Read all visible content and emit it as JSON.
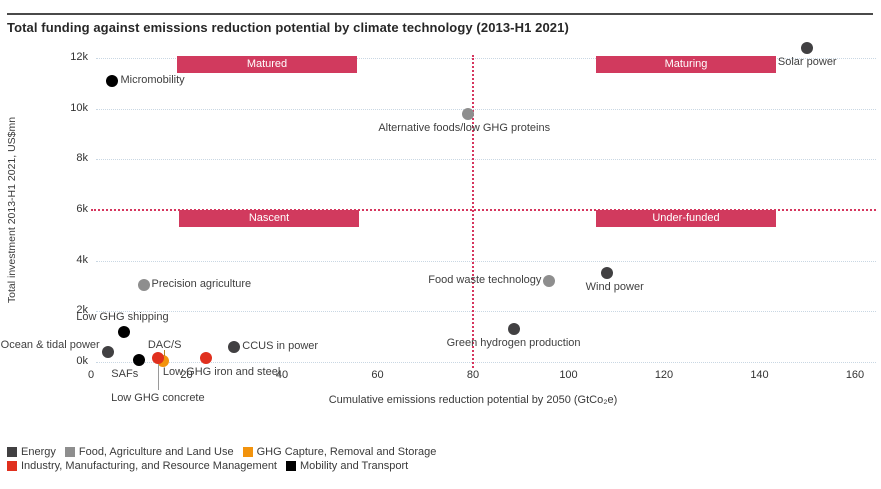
{
  "chart_data": {
    "type": "scatter",
    "title": "Total funding against emissions reduction potential by climate technology (2013-H1 2021)",
    "xlabel": "Cumulative emissions reduction potential by 2050 (GtCo₂e)",
    "ylabel": "Total investment 2013-H1 2021, US$mn",
    "xlim": [
      0,
      160
    ],
    "xticks": [
      0,
      20,
      40,
      60,
      80,
      100,
      120,
      140,
      160
    ],
    "ylim": [
      0,
      12400
    ],
    "yticks": [
      {
        "value": 0,
        "label": "0k"
      },
      {
        "value": 2000,
        "label": "2k"
      },
      {
        "value": 4000,
        "label": "4k"
      },
      {
        "value": 6000,
        "label": "6k"
      },
      {
        "value": 8000,
        "label": "8k"
      },
      {
        "value": 10000,
        "label": "10k"
      },
      {
        "value": 12000,
        "label": "12k"
      }
    ],
    "grid": "horizontal-dotted",
    "dividers": {
      "x_value": 80,
      "y_value": 6000
    },
    "quadrants": {
      "top_left": "Matured",
      "top_right": "Maturing",
      "bottom_left": "Nascent",
      "bottom_right": "Under-funded"
    },
    "colors": {
      "quadrant_bar": "#d13a5e",
      "divider_line": "#d6365e",
      "gridline": "#c9d7e3"
    },
    "legend": {
      "position": "bottom-left",
      "categories": [
        {
          "name": "Energy",
          "color": "#414042"
        },
        {
          "name": "Food, Agriculture and Land Use",
          "color": "#8e8e8e"
        },
        {
          "name": "GHG Capture, Removal and Storage",
          "color": "#f2930d"
        },
        {
          "name": "Industry, Manufacturing, and Resource Management",
          "color": "#e0301e"
        },
        {
          "name": "Mobility and Transport",
          "color": "#000000"
        }
      ],
      "rows": [
        [
          0,
          1,
          2
        ],
        [
          3,
          4
        ]
      ]
    },
    "points": [
      {
        "label": "Micromobility",
        "x": 4.5,
        "y": 11100,
        "category": "Mobility and Transport",
        "label_pos": "right"
      },
      {
        "label": "Solar power",
        "x": 150,
        "y": 12400,
        "category": "Energy",
        "label_pos": "below"
      },
      {
        "label": "Alternative foods/low GHG proteins",
        "x": 79,
        "y": 9800,
        "category": "Food, Agriculture and Land Use",
        "label_pos": "below",
        "dx": -4
      },
      {
        "label": "Precision agriculture",
        "x": 11,
        "y": 3050,
        "category": "Food, Agriculture and Land Use",
        "label_pos": "right"
      },
      {
        "label": "Food waste technology",
        "x": 96,
        "y": 3200,
        "category": "Food, Agriculture and Land Use",
        "label_pos": "left"
      },
      {
        "label": "Wind power",
        "x": 108,
        "y": 3500,
        "category": "Energy",
        "label_pos": "below",
        "dx": 8
      },
      {
        "label": "Green hydrogen production",
        "x": 88.5,
        "y": 1300,
        "category": "Energy",
        "label_pos": "below"
      },
      {
        "label": "Low GHG shipping",
        "x": 7,
        "y": 1200,
        "category": "Mobility and Transport",
        "label_pos": "above",
        "dx": -2
      },
      {
        "label": "Ocean & tidal power",
        "x": 3.5,
        "y": 400,
        "category": "Energy",
        "label_pos": "left",
        "dy": -6
      },
      {
        "label": "SAFs",
        "x": 10,
        "y": 60,
        "category": "Mobility and Transport",
        "label_pos": "below",
        "dx": -14
      },
      {
        "label": "DAC/S",
        "x": 15,
        "y": 30,
        "category": "GHG Capture, Removal and Storage",
        "label_pos": "callout-above"
      },
      {
        "label": "Low GHG concrete",
        "x": 14,
        "y": 140,
        "category": "Industry, Manufacturing, and Resource Management",
        "label_pos": "callout-below"
      },
      {
        "label": "Low GHG iron and steel",
        "x": 24,
        "y": 140,
        "category": "Industry, Manufacturing, and Resource Management",
        "label_pos": "below",
        "dx": 16
      },
      {
        "label": "CCUS in power",
        "x": 30,
        "y": 600,
        "category": "Energy",
        "label_pos": "right"
      }
    ]
  }
}
